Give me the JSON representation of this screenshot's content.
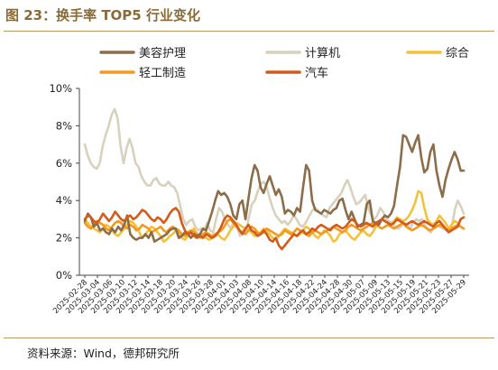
{
  "figure": {
    "title": "图 23：换手率 TOP5 行业变化",
    "source": "资料来源：Wind，德邦研究所"
  },
  "chart_data": {
    "type": "line",
    "title": "",
    "xlabel": "",
    "ylabel": "",
    "ylim": [
      0,
      10
    ],
    "y_ticks": [
      "0%",
      "2%",
      "4%",
      "6%",
      "8%",
      "10%"
    ],
    "y_unit": "%",
    "grid": false,
    "legend_position": "top",
    "x_tick_labels": [
      "2025-02-28",
      "2025-03-04",
      "2025-03-06",
      "2025-03-10",
      "2025-03-12",
      "2025-03-14",
      "2025-03-18",
      "2025-03-20",
      "2025-03-24",
      "2025-03-26",
      "2025-03-28",
      "2025-04-01",
      "2025-04-03",
      "2025-04-08",
      "2025-04-10",
      "2025-04-14",
      "2025-04-16",
      "2025-04-18",
      "2025-04-22",
      "2025-04-24",
      "2025-04-28",
      "2025-04-30",
      "2025-05-07",
      "2025-05-09",
      "2025-05-13",
      "2025-05-15",
      "2025-05-19",
      "2025-05-21",
      "2025-05-23",
      "2025-05-27",
      "2025-05-29"
    ],
    "series": [
      {
        "name": "美容护理",
        "color": "#8c6d4a",
        "values": [
          2.9,
          3.3,
          3.1,
          2.6,
          2.8,
          2.4,
          2.5,
          2.3,
          2.2,
          2.5,
          2.3,
          2.6,
          2.4,
          2.7,
          3.2,
          2.2,
          2.0,
          1.9,
          2.0,
          2.0,
          2.2,
          2.0,
          2.3,
          1.8,
          1.9,
          2.0,
          2.1,
          2.2,
          2.4,
          2.5,
          2.5,
          2.0,
          2.1,
          2.3,
          2.2,
          2.0,
          2.2,
          2.1,
          2.2,
          2.5,
          2.4,
          2.9,
          3.4,
          4.0,
          4.5,
          4.3,
          4.4,
          4.2,
          3.8,
          3.2,
          3.0,
          3.8,
          4.0,
          3.0,
          4.1,
          5.2,
          5.9,
          5.6,
          4.7,
          4.4,
          4.9,
          5.3,
          4.8,
          4.3,
          4.6,
          4.2,
          3.3,
          3.5,
          3.4,
          3.2,
          3.6,
          3.4,
          4.7,
          5.9,
          5.6,
          4.0,
          3.5,
          3.4,
          3.3,
          3.5,
          3.4,
          3.3,
          3.5,
          3.6,
          4.0,
          4.1,
          3.5,
          3.0,
          3.4,
          3.0,
          2.6,
          2.7,
          2.8,
          3.8,
          4.0,
          2.9,
          2.8,
          2.7,
          3.0,
          3.2,
          3.1,
          3.3,
          3.7,
          4.8,
          5.8,
          7.5,
          7.4,
          7.0,
          6.6,
          7.1,
          7.5,
          6.3,
          5.5,
          5.7,
          6.6,
          7.0,
          5.6,
          4.8,
          4.2,
          5.1,
          5.7,
          6.2,
          6.6,
          6.2,
          5.6,
          5.6
        ]
      },
      {
        "name": "计算机",
        "color": "#d8d1bd",
        "values": [
          7.0,
          6.4,
          6.0,
          5.8,
          5.7,
          6.0,
          6.9,
          7.5,
          8.0,
          8.6,
          8.9,
          8.4,
          6.9,
          6.0,
          6.8,
          7.3,
          6.8,
          6.0,
          5.8,
          5.3,
          5.0,
          4.8,
          4.8,
          5.1,
          5.2,
          4.9,
          4.8,
          4.8,
          5.0,
          4.8,
          4.7,
          4.4,
          3.7,
          3.0,
          2.7,
          2.9,
          3.0,
          2.6,
          2.4,
          2.5,
          2.4,
          2.8,
          2.4,
          2.3,
          3.0,
          3.6,
          3.4,
          3.0,
          2.7,
          2.5,
          2.9,
          2.6,
          2.1,
          2.4,
          2.3,
          3.1,
          3.8,
          4.0,
          4.5,
          4.9,
          5.0,
          4.7,
          4.1,
          3.6,
          3.2,
          3.0,
          2.8,
          2.9,
          2.7,
          2.9,
          3.2,
          3.0,
          2.7,
          2.6,
          2.8,
          3.1,
          3.4,
          3.6,
          3.5,
          3.3,
          3.2,
          3.1,
          3.6,
          3.8,
          4.0,
          4.2,
          4.4,
          4.8,
          5.1,
          4.7,
          4.2,
          3.8,
          3.9,
          4.1,
          4.3,
          3.6,
          3.2,
          3.0,
          3.2,
          3.6,
          3.4,
          3.0,
          2.9,
          2.8,
          2.6,
          2.5,
          2.6,
          2.8,
          2.7,
          2.5,
          2.8,
          3.0,
          2.9,
          3.0,
          2.7,
          2.4,
          2.3,
          2.6,
          2.7,
          2.6,
          2.5,
          2.4,
          2.5,
          2.6,
          3.5,
          4.0,
          3.7,
          3.3
        ]
      },
      {
        "name": "综合",
        "color": "#f3c23b",
        "values": [
          3.0,
          2.8,
          2.6,
          2.5,
          2.4,
          2.3,
          2.5,
          2.7,
          2.6,
          2.4,
          2.2,
          2.1,
          2.3,
          2.5,
          2.7,
          2.9,
          2.8,
          2.6,
          2.3,
          2.0,
          2.2,
          2.4,
          2.6,
          2.5,
          2.3,
          2.1,
          1.8,
          1.9,
          2.1,
          2.2,
          2.4,
          2.3,
          2.0,
          1.9,
          2.1,
          2.3,
          2.5,
          2.2,
          2.0,
          2.1,
          2.0,
          1.9,
          2.0,
          2.1,
          2.2,
          2.0,
          1.9,
          2.1,
          2.4,
          2.6,
          2.8,
          2.7,
          2.6,
          2.5,
          2.4,
          2.3,
          2.1,
          2.2,
          2.3,
          2.5,
          2.4,
          2.2,
          2.0,
          1.9,
          2.1,
          2.3,
          2.5,
          2.4,
          2.3,
          2.2,
          2.1,
          2.2,
          2.4,
          2.6,
          2.5,
          2.3,
          2.1,
          2.0,
          2.2,
          2.4,
          2.3,
          2.1,
          1.8,
          1.9,
          2.2,
          2.3,
          2.4,
          2.2,
          2.0,
          1.9,
          2.1,
          2.3,
          2.4,
          2.2,
          2.1,
          2.3,
          2.6,
          2.8,
          3.0,
          2.9,
          2.8,
          2.7,
          2.9,
          3.1,
          3.0,
          2.9,
          3.0,
          3.2,
          3.5,
          3.9,
          4.5,
          4.4,
          3.6,
          3.0,
          2.8,
          2.7,
          2.9,
          3.2,
          3.0,
          2.8,
          2.5,
          2.7,
          2.9,
          2.8,
          2.6,
          2.5
        ]
      },
      {
        "name": "轻工制造",
        "color": "#f39a1e",
        "values": [
          2.8,
          2.6,
          2.5,
          2.7,
          2.9,
          2.8,
          2.7,
          2.5,
          2.4,
          2.6,
          2.8,
          2.9,
          2.8,
          2.6,
          2.5,
          2.7,
          2.6,
          2.4,
          2.5,
          2.7,
          2.6,
          2.5,
          2.3,
          2.4,
          2.5,
          2.6,
          2.4,
          2.3,
          2.5,
          2.6,
          2.5,
          2.4,
          2.2,
          2.1,
          2.3,
          2.4,
          2.3,
          2.2,
          2.1,
          2.2,
          2.3,
          2.2,
          2.1,
          2.2,
          2.3,
          2.4,
          2.6,
          2.9,
          3.0,
          2.8,
          2.6,
          2.4,
          2.3,
          2.2,
          2.4,
          2.6,
          2.5,
          2.3,
          2.2,
          2.3,
          2.5,
          2.4,
          2.3,
          2.2,
          2.1,
          2.2,
          2.4,
          2.3,
          2.2,
          2.3,
          2.5,
          2.4,
          2.3,
          2.2,
          2.1,
          2.3,
          2.4,
          2.3,
          2.2,
          2.3,
          2.4,
          2.5,
          2.6,
          2.5,
          2.4,
          2.3,
          2.4,
          2.6,
          2.7,
          2.6,
          2.5,
          2.4,
          2.5,
          2.6,
          2.7,
          2.8,
          2.7,
          2.6,
          2.5,
          2.6,
          2.7,
          2.6,
          2.5,
          2.6,
          2.7,
          2.8,
          2.6,
          2.5,
          2.4,
          2.5,
          2.6,
          2.7,
          2.6,
          2.5,
          2.4,
          2.5,
          2.6,
          2.7,
          2.6,
          2.5,
          2.4,
          2.5,
          2.6,
          2.7,
          2.6,
          2.5
        ]
      },
      {
        "name": "汽车",
        "color": "#d35b1c",
        "values": [
          3.0,
          3.2,
          3.1,
          2.9,
          2.8,
          3.0,
          3.3,
          3.1,
          2.9,
          3.1,
          3.4,
          3.2,
          3.0,
          2.9,
          3.1,
          3.2,
          3.0,
          3.1,
          3.3,
          3.5,
          3.4,
          3.2,
          3.0,
          2.9,
          3.1,
          3.0,
          2.8,
          3.0,
          3.3,
          3.5,
          3.6,
          3.4,
          2.8,
          2.4,
          2.2,
          2.3,
          2.1,
          2.0,
          2.1,
          2.0,
          2.2,
          2.1,
          2.0,
          2.1,
          2.3,
          2.6,
          3.0,
          3.2,
          3.1,
          2.9,
          2.7,
          2.4,
          2.2,
          2.5,
          2.7,
          2.4,
          2.3,
          2.1,
          2.2,
          2.4,
          2.2,
          1.9,
          1.8,
          2.0,
          1.6,
          1.4,
          1.6,
          1.8,
          2.0,
          2.2,
          2.1,
          2.3,
          2.4,
          2.2,
          2.3,
          2.5,
          2.4,
          2.6,
          2.7,
          2.6,
          2.5,
          2.4,
          2.6,
          2.7,
          2.6,
          2.5,
          2.6,
          2.8,
          3.0,
          2.9,
          2.7,
          2.6,
          2.7,
          2.8,
          2.7,
          2.6,
          2.8,
          2.9,
          3.0,
          2.9,
          2.8,
          2.7,
          2.8,
          3.0,
          2.9,
          2.8,
          2.7,
          2.8,
          2.9,
          2.8,
          2.7,
          2.8,
          2.9,
          2.8,
          2.7,
          2.6,
          2.8,
          2.9,
          2.7,
          2.5,
          2.3,
          2.4,
          2.5,
          2.6,
          3.0,
          3.1
        ]
      }
    ]
  }
}
